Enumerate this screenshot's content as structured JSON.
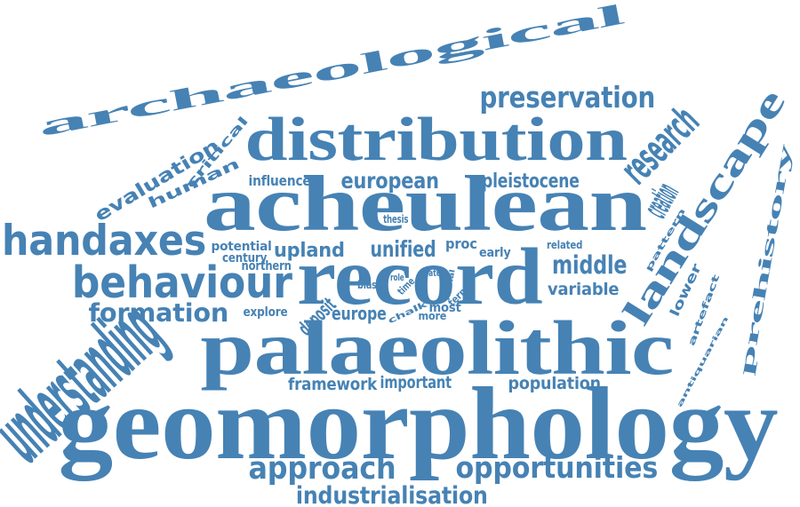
{
  "style": {
    "word_color": "#4682b4",
    "background": "#ffffff"
  },
  "words": [
    "archaeological",
    "distribution",
    "preservation",
    "acheulean",
    "landscape",
    "prehistory",
    "handaxes",
    "behaviour",
    "record",
    "palaeolithic",
    "geomorphology",
    "formation",
    "evaluation",
    "critical",
    "human",
    "influence",
    "european",
    "pleistocene",
    "research",
    "creation",
    "pattern",
    "thesis",
    "potential",
    "century",
    "upland",
    "unified",
    "proc",
    "related",
    "early",
    "middle",
    "northern",
    "bias",
    "role",
    "time",
    "late",
    "explore",
    "deposit",
    "europe",
    "chalk",
    "fluvial",
    "term",
    "more",
    "most",
    "variable",
    "lower",
    "artefact",
    "antiquarian",
    "understanding",
    "framework",
    "important",
    "population",
    "approach",
    "opportunities",
    "industrialisation"
  ]
}
